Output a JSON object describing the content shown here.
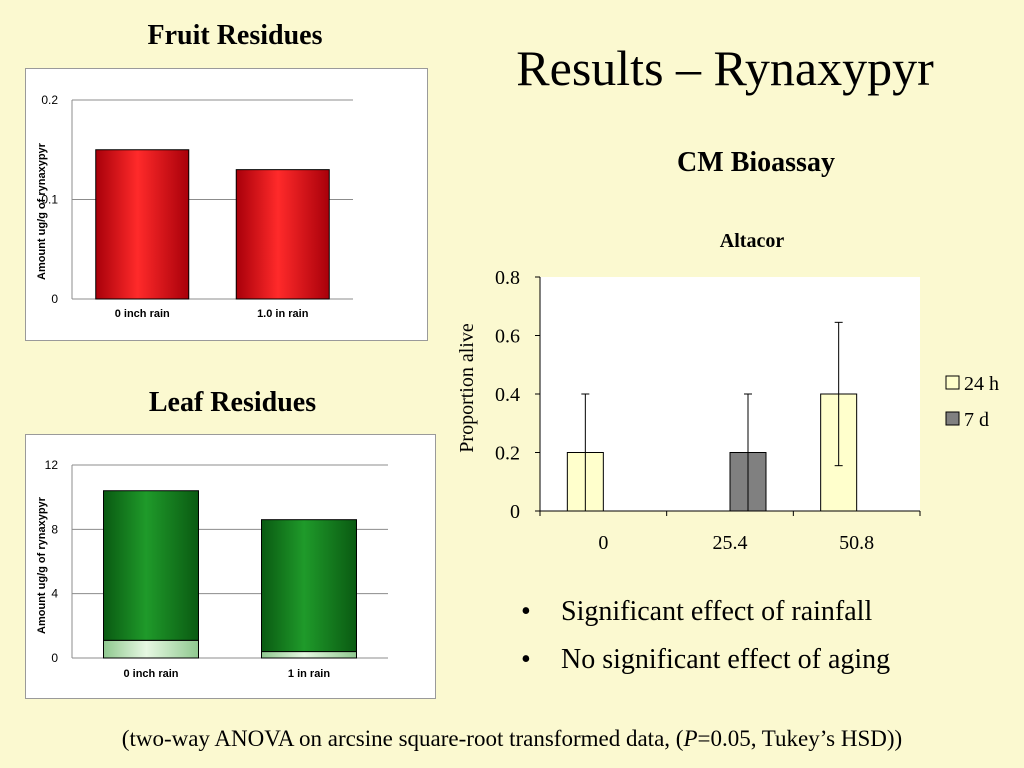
{
  "slide": {
    "title": "Results – Rynaxypyr",
    "subtitle": "CM Bioassay",
    "bullets": [
      "Significant effect of rainfall",
      "No significant effect of aging"
    ],
    "bullet_symbol": "•",
    "footnote_before": "(two-way ANOVA on arcsine square-root transformed data, (",
    "footnote_italic": "P",
    "footnote_after": "=0.05, Tukey’s HSD))"
  },
  "colors": {
    "background": "#fbf9d0",
    "fruit_bar": "#e8000a",
    "leaf_bar_dark": "#0e7a1a",
    "leaf_bar_light": "#bfe8bf",
    "bar_24h": "#ffffcc",
    "bar_7d": "#808080"
  },
  "chart_data": [
    {
      "type": "bar",
      "heading": "Fruit Residues",
      "title": "",
      "xlabel": "",
      "ylabel": "Amount ug/g of rynaxypyr",
      "categories": [
        "0 inch rain",
        "1.0 in rain"
      ],
      "values": [
        0.15,
        0.13
      ],
      "ylim": [
        0,
        0.2
      ],
      "yticks": [
        "0",
        "0.1",
        "0.2"
      ],
      "grid": true,
      "legend": "none"
    },
    {
      "type": "bar",
      "stacked": true,
      "heading": "Leaf Residues",
      "title": "",
      "xlabel": "",
      "ylabel": "Amount ug/g of rynaxypyr",
      "categories": [
        "0 inch rain",
        "1 in rain"
      ],
      "series": [
        {
          "values": [
            1.1,
            0.4
          ]
        },
        {
          "values": [
            9.3,
            8.2
          ]
        }
      ],
      "ylim": [
        0,
        12
      ],
      "yticks": [
        "0",
        "4",
        "8",
        "12"
      ],
      "grid": true,
      "legend": "none"
    },
    {
      "type": "bar",
      "title": "Altacor",
      "xlabel": "",
      "ylabel": "Proportion alive",
      "categories": [
        "0",
        "25.4",
        "50.8"
      ],
      "series": [
        {
          "name": "24 h",
          "values": [
            0.2,
            0.0,
            0.4
          ],
          "error_upper": [
            0.4,
            null,
            0.645
          ],
          "error_lower": [
            0.0,
            null,
            0.155
          ]
        },
        {
          "name": "7 d",
          "values": [
            0.0,
            0.2,
            0.0
          ],
          "error_upper": [
            null,
            0.4,
            null
          ],
          "error_lower": [
            null,
            0.0,
            null
          ]
        }
      ],
      "ylim": [
        0,
        0.8
      ],
      "yticks": [
        "0",
        "0.2",
        "0.4",
        "0.6",
        "0.8"
      ],
      "grid": false,
      "legend": "right"
    }
  ]
}
